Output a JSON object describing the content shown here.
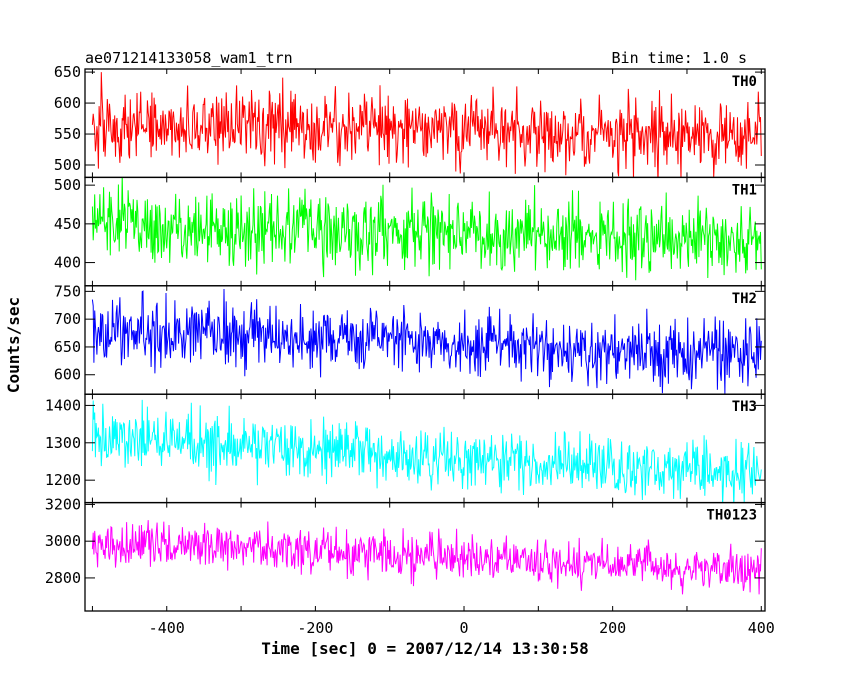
{
  "header": {
    "title": "ae071214133058_wam1_trn",
    "bin_time": "Bin time: 1.0 s"
  },
  "axes": {
    "xlabel": "Time [sec] 0 = 2007/12/14 13:30:58",
    "ylabel": "Counts/sec",
    "xlim": [
      -510,
      405
    ],
    "xticks": [
      -400,
      -200,
      0,
      200,
      400
    ]
  },
  "chart_data": {
    "type": "line",
    "x": {
      "start": -500,
      "end": 400,
      "step": 1
    },
    "series": [
      {
        "name": "TH0",
        "color": "#ff0000",
        "ylim": [
          480,
          655
        ],
        "yticks": [
          500,
          550,
          600,
          650
        ],
        "mean_start": 565,
        "mean_end": 548,
        "noise": 28
      },
      {
        "name": "TH1",
        "color": "#00ff00",
        "ylim": [
          370,
          510
        ],
        "yticks": [
          400,
          450,
          500
        ],
        "mean_start": 448,
        "mean_end": 430,
        "noise": 24
      },
      {
        "name": "TH2",
        "color": "#0000ff",
        "ylim": [
          565,
          760
        ],
        "yticks": [
          600,
          650,
          700,
          750
        ],
        "mean_start": 682,
        "mean_end": 632,
        "noise": 30
      },
      {
        "name": "TH3",
        "color": "#00ffff",
        "ylim": [
          1140,
          1430
        ],
        "yticks": [
          1200,
          1300,
          1400
        ],
        "mean_start": 1315,
        "mean_end": 1215,
        "noise": 40
      },
      {
        "name": "TH0123",
        "color": "#ff00ff",
        "ylim": [
          2620,
          3210
        ],
        "yticks": [
          2800,
          3000,
          3200
        ],
        "mean_start": 3000,
        "mean_end": 2840,
        "noise": 62
      }
    ]
  }
}
